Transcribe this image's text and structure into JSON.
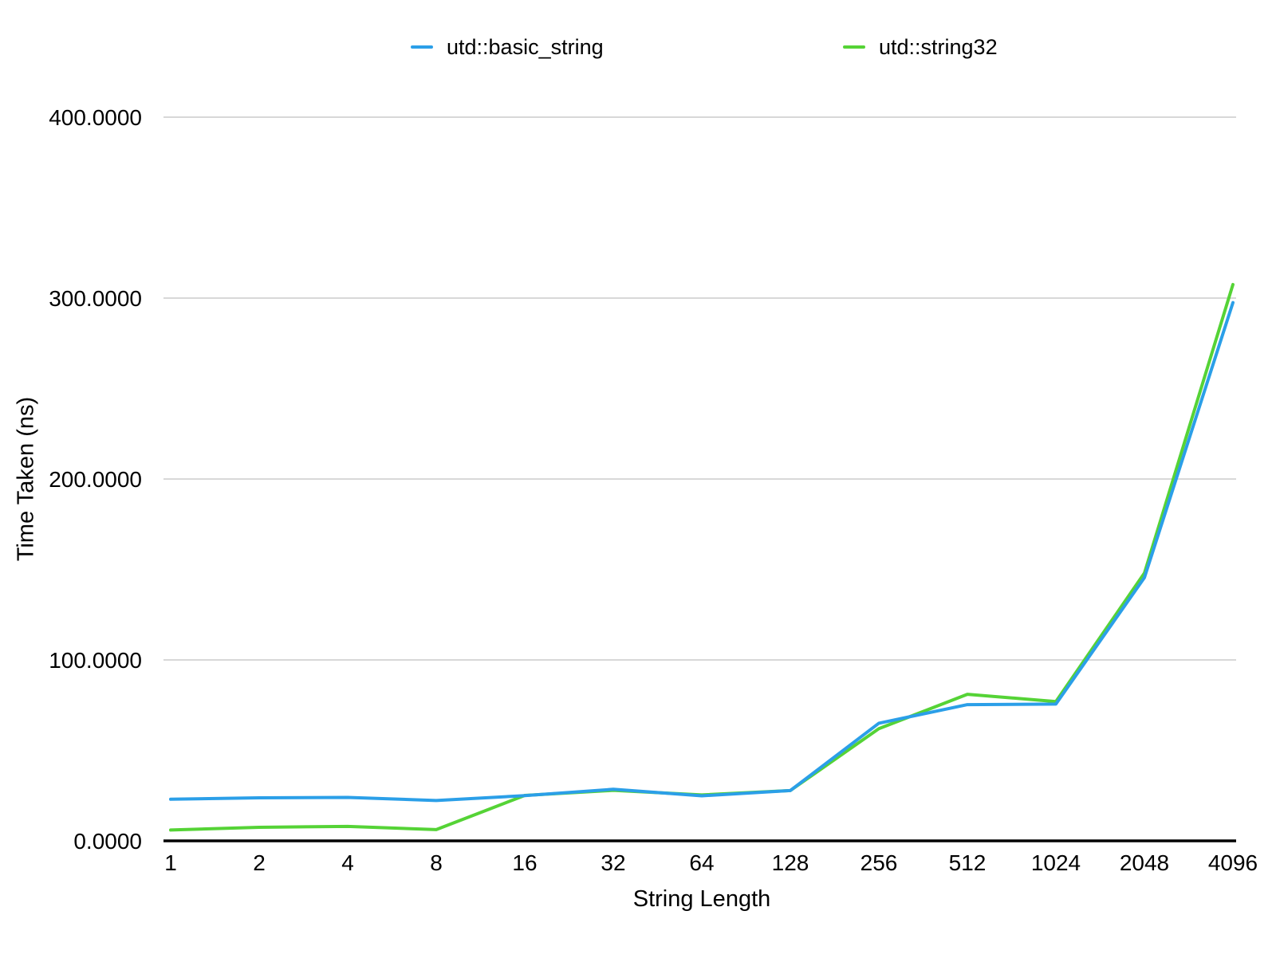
{
  "chart_data": {
    "type": "line",
    "title": "",
    "xlabel": "String Length",
    "ylabel": "Time Taken (ns)",
    "x_categories": [
      "1",
      "2",
      "4",
      "8",
      "16",
      "32",
      "64",
      "128",
      "256",
      "512",
      "1024",
      "2048",
      "4096"
    ],
    "x_scale": "categorical-log2",
    "ylim": [
      0,
      400
    ],
    "y_ticks": [
      {
        "label": "0.0000",
        "value": 0
      },
      {
        "label": "100.0000",
        "value": 100
      },
      {
        "label": "200.0000",
        "value": 200
      },
      {
        "label": "300.0000",
        "value": 300
      },
      {
        "label": "400.0000",
        "value": 400
      }
    ],
    "grid": "horizontal-only",
    "legend_position": "top-center",
    "colors": {
      "gridline": "#d8d8d8",
      "axis": "#000000",
      "text": "#000000",
      "background": "#ffffff"
    },
    "series": [
      {
        "name": "utd::basic_string",
        "color": "#2B9FE8",
        "values": [
          23.0,
          23.8,
          24.0,
          22.3,
          25.0,
          28.5,
          24.9,
          27.8,
          65.0,
          75.3,
          75.6,
          145.5,
          297.5
        ]
      },
      {
        "name": "utd::string32",
        "color": "#55D336",
        "values": [
          6.0,
          7.5,
          8.0,
          6.2,
          25.1,
          27.9,
          25.4,
          27.8,
          62.0,
          81.0,
          77.0,
          148.0,
          307.5
        ]
      }
    ]
  }
}
